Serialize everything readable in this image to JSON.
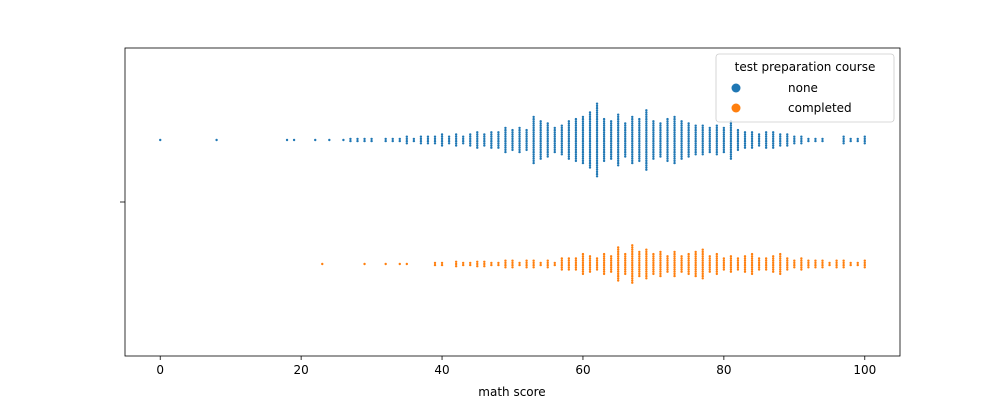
{
  "chart_data": {
    "type": "scatter",
    "kind": "swarm",
    "orientation": "horizontal",
    "xlabel": "math score",
    "ylabel": "",
    "xlim": [
      -5,
      105
    ],
    "xticks": [
      0,
      20,
      40,
      60,
      80,
      100
    ],
    "xtick_labels": [
      "0",
      "20",
      "40",
      "60",
      "80",
      "100"
    ],
    "grid": false,
    "legend": {
      "title": "test preparation course",
      "placement": "top-right",
      "entries": [
        "none",
        "completed"
      ]
    },
    "series": [
      {
        "name": "none",
        "color": "#1f77b4",
        "value_counts": [
          [
            0,
            1
          ],
          [
            8,
            1
          ],
          [
            18,
            1
          ],
          [
            19,
            1
          ],
          [
            22,
            1
          ],
          [
            24,
            1
          ],
          [
            26,
            1
          ],
          [
            27,
            2
          ],
          [
            28,
            2
          ],
          [
            29,
            2
          ],
          [
            30,
            2
          ],
          [
            32,
            2
          ],
          [
            33,
            2
          ],
          [
            34,
            2
          ],
          [
            35,
            4
          ],
          [
            36,
            2
          ],
          [
            37,
            4
          ],
          [
            38,
            4
          ],
          [
            39,
            4
          ],
          [
            40,
            6
          ],
          [
            41,
            4
          ],
          [
            42,
            6
          ],
          [
            43,
            4
          ],
          [
            44,
            6
          ],
          [
            45,
            8
          ],
          [
            46,
            6
          ],
          [
            47,
            8
          ],
          [
            48,
            8
          ],
          [
            49,
            12
          ],
          [
            50,
            10
          ],
          [
            51,
            12
          ],
          [
            52,
            10
          ],
          [
            53,
            22
          ],
          [
            54,
            18
          ],
          [
            55,
            16
          ],
          [
            56,
            12
          ],
          [
            57,
            14
          ],
          [
            58,
            18
          ],
          [
            59,
            20
          ],
          [
            60,
            22
          ],
          [
            61,
            26
          ],
          [
            62,
            34
          ],
          [
            63,
            20
          ],
          [
            64,
            18
          ],
          [
            65,
            24
          ],
          [
            66,
            16
          ],
          [
            67,
            22
          ],
          [
            68,
            20
          ],
          [
            69,
            28
          ],
          [
            70,
            18
          ],
          [
            71,
            16
          ],
          [
            72,
            20
          ],
          [
            73,
            22
          ],
          [
            74,
            18
          ],
          [
            75,
            16
          ],
          [
            76,
            14
          ],
          [
            77,
            14
          ],
          [
            78,
            12
          ],
          [
            79,
            14
          ],
          [
            80,
            12
          ],
          [
            81,
            18
          ],
          [
            82,
            10
          ],
          [
            83,
            8
          ],
          [
            84,
            8
          ],
          [
            85,
            6
          ],
          [
            86,
            8
          ],
          [
            87,
            8
          ],
          [
            88,
            6
          ],
          [
            89,
            6
          ],
          [
            90,
            4
          ],
          [
            91,
            4
          ],
          [
            92,
            2
          ],
          [
            93,
            2
          ],
          [
            94,
            2
          ],
          [
            97,
            4
          ],
          [
            98,
            2
          ],
          [
            99,
            2
          ],
          [
            100,
            4
          ]
        ]
      },
      {
        "name": "completed",
        "color": "#ff7f0e",
        "value_counts": [
          [
            23,
            1
          ],
          [
            29,
            1
          ],
          [
            32,
            1
          ],
          [
            34,
            1
          ],
          [
            35,
            1
          ],
          [
            39,
            2
          ],
          [
            40,
            2
          ],
          [
            42,
            3
          ],
          [
            43,
            2
          ],
          [
            44,
            2
          ],
          [
            45,
            3
          ],
          [
            46,
            3
          ],
          [
            47,
            2
          ],
          [
            48,
            2
          ],
          [
            49,
            4
          ],
          [
            50,
            4
          ],
          [
            51,
            2
          ],
          [
            52,
            4
          ],
          [
            53,
            4
          ],
          [
            54,
            2
          ],
          [
            55,
            4
          ],
          [
            56,
            2
          ],
          [
            57,
            6
          ],
          [
            58,
            6
          ],
          [
            59,
            6
          ],
          [
            60,
            10
          ],
          [
            61,
            8
          ],
          [
            62,
            6
          ],
          [
            63,
            10
          ],
          [
            64,
            8
          ],
          [
            65,
            16
          ],
          [
            66,
            10
          ],
          [
            67,
            18
          ],
          [
            68,
            12
          ],
          [
            69,
            14
          ],
          [
            70,
            10
          ],
          [
            71,
            12
          ],
          [
            72,
            8
          ],
          [
            73,
            12
          ],
          [
            74,
            8
          ],
          [
            75,
            10
          ],
          [
            76,
            12
          ],
          [
            77,
            14
          ],
          [
            78,
            8
          ],
          [
            79,
            10
          ],
          [
            80,
            6
          ],
          [
            81,
            8
          ],
          [
            82,
            6
          ],
          [
            83,
            8
          ],
          [
            84,
            10
          ],
          [
            85,
            6
          ],
          [
            86,
            6
          ],
          [
            87,
            8
          ],
          [
            88,
            10
          ],
          [
            89,
            6
          ],
          [
            90,
            4
          ],
          [
            91,
            6
          ],
          [
            92,
            4
          ],
          [
            93,
            4
          ],
          [
            94,
            4
          ],
          [
            95,
            2
          ],
          [
            96,
            4
          ],
          [
            97,
            4
          ],
          [
            98,
            2
          ],
          [
            99,
            2
          ],
          [
            100,
            4
          ]
        ]
      }
    ]
  }
}
